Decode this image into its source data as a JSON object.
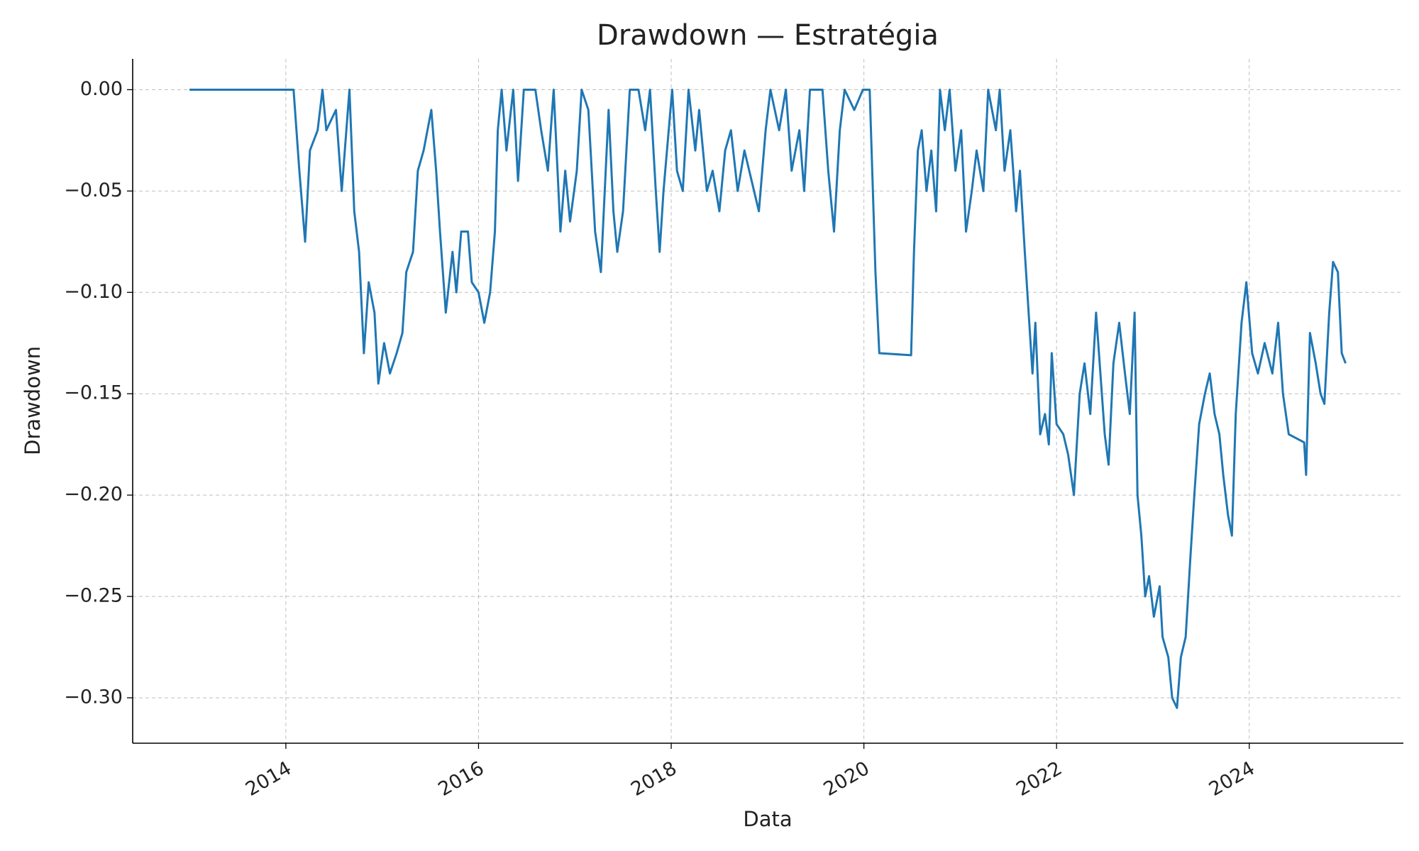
{
  "chart_data": {
    "type": "line",
    "title": "Drawdown — Estratégia",
    "xlabel": "Data",
    "ylabel": "Drawdown",
    "color": "#1f77b4",
    "grid": true,
    "xlim": [
      2012.41,
      2025.6
    ],
    "xticks": [
      2014,
      2016,
      2018,
      2020,
      2022,
      2024
    ],
    "ylim": [
      -0.3224,
      0.0152
    ],
    "yticks": [
      {
        "value": 0,
        "label": "0.00"
      },
      {
        "value": -0.05,
        "label": "−0.05"
      },
      {
        "value": -0.1,
        "label": "−0.10"
      },
      {
        "value": -0.15,
        "label": "−0.15"
      },
      {
        "value": -0.2,
        "label": "−0.20"
      },
      {
        "value": -0.25,
        "label": "−0.25"
      },
      {
        "value": -0.3,
        "label": "−0.30"
      }
    ],
    "x": [
      2013.0,
      2014.08,
      2014.14,
      2014.2,
      2014.25,
      2014.33,
      2014.38,
      2014.42,
      2014.52,
      2014.58,
      2014.66,
      2014.71,
      2014.76,
      2014.81,
      2014.86,
      2014.92,
      2014.96,
      2015.02,
      2015.08,
      2015.15,
      2015.21,
      2015.25,
      2015.32,
      2015.37,
      2015.43,
      2015.51,
      2015.56,
      2015.6,
      2015.66,
      2015.73,
      2015.77,
      2015.82,
      2015.89,
      2015.93,
      2016.0,
      2016.06,
      2016.12,
      2016.17,
      2016.2,
      2016.24,
      2016.29,
      2016.36,
      2016.41,
      2016.47,
      2016.59,
      2016.65,
      2016.72,
      2016.78,
      2016.85,
      2016.9,
      2016.95,
      2017.02,
      2017.07,
      2017.14,
      2017.21,
      2017.27,
      2017.35,
      2017.4,
      2017.44,
      2017.5,
      2017.57,
      2017.66,
      2017.73,
      2017.78,
      2017.84,
      2017.88,
      2017.92,
      2018.01,
      2018.06,
      2018.12,
      2018.18,
      2018.25,
      2018.29,
      2018.37,
      2018.43,
      2018.5,
      2018.56,
      2018.62,
      2018.69,
      2018.76,
      2018.86,
      2018.91,
      2018.98,
      2019.03,
      2019.12,
      2019.19,
      2019.25,
      2019.33,
      2019.38,
      2019.44,
      2019.57,
      2019.63,
      2019.69,
      2019.75,
      2019.8,
      2019.9,
      2019.99,
      2020.06,
      2020.08,
      2020.12,
      2020.16,
      2020.49,
      2020.52,
      2020.56,
      2020.6,
      2020.65,
      2020.7,
      2020.75,
      2020.79,
      2020.84,
      2020.89,
      2020.95,
      2021.01,
      2021.06,
      2021.12,
      2021.17,
      2021.24,
      2021.29,
      2021.37,
      2021.41,
      2021.46,
      2021.52,
      2021.58,
      2021.62,
      2021.67,
      2021.71,
      2021.75,
      2021.78,
      2021.83,
      2021.88,
      2021.92,
      2021.95,
      2022.0,
      2022.07,
      2022.12,
      2022.18,
      2022.24,
      2022.29,
      2022.35,
      2022.41,
      2022.44,
      2022.5,
      2022.54,
      2022.59,
      2022.65,
      2022.71,
      2022.76,
      2022.81,
      2022.84,
      2022.88,
      2022.92,
      2022.96,
      2023.01,
      2023.07,
      2023.1,
      2023.16,
      2023.2,
      2023.25,
      2023.29,
      2023.34,
      2023.39,
      2023.43,
      2023.48,
      2023.54,
      2023.59,
      2023.64,
      2023.69,
      2023.73,
      2023.78,
      2023.82,
      2023.86,
      2023.92,
      2023.97,
      2024.03,
      2024.09,
      2024.16,
      2024.24,
      2024.3,
      2024.35,
      2024.41,
      2024.57,
      2024.59,
      2024.63,
      2024.69,
      2024.74,
      2024.78,
      2024.83,
      2024.87,
      2024.92,
      2024.96,
      2025.0
    ],
    "values": [
      0,
      0,
      -0.04,
      -0.075,
      -0.03,
      -0.02,
      0,
      -0.02,
      -0.01,
      -0.05,
      0,
      -0.06,
      -0.08,
      -0.13,
      -0.095,
      -0.11,
      -0.145,
      -0.125,
      -0.14,
      -0.13,
      -0.12,
      -0.09,
      -0.08,
      -0.04,
      -0.03,
      -0.01,
      -0.04,
      -0.07,
      -0.11,
      -0.08,
      -0.1,
      -0.07,
      -0.07,
      -0.095,
      -0.1,
      -0.115,
      -0.1,
      -0.07,
      -0.02,
      0,
      -0.03,
      0,
      -0.045,
      0,
      0,
      -0.02,
      -0.04,
      0,
      -0.07,
      -0.04,
      -0.065,
      -0.04,
      0,
      -0.01,
      -0.07,
      -0.09,
      -0.01,
      -0.06,
      -0.08,
      -0.06,
      0,
      0,
      -0.02,
      0,
      -0.05,
      -0.08,
      -0.05,
      0,
      -0.04,
      -0.05,
      0,
      -0.03,
      -0.01,
      -0.05,
      -0.04,
      -0.06,
      -0.03,
      -0.02,
      -0.05,
      -0.03,
      -0.05,
      -0.06,
      -0.02,
      0,
      -0.02,
      0,
      -0.04,
      -0.02,
      -0.05,
      0,
      0,
      -0.04,
      -0.07,
      -0.02,
      0,
      -0.01,
      0,
      0,
      -0.03,
      -0.09,
      -0.13,
      -0.131,
      -0.08,
      -0.03,
      -0.02,
      -0.05,
      -0.03,
      -0.06,
      0,
      -0.02,
      0,
      -0.04,
      -0.02,
      -0.07,
      -0.05,
      -0.03,
      -0.05,
      0,
      -0.02,
      0,
      -0.04,
      -0.02,
      -0.06,
      -0.04,
      -0.08,
      -0.11,
      -0.14,
      -0.115,
      -0.17,
      -0.16,
      -0.175,
      -0.13,
      -0.165,
      -0.17,
      -0.18,
      -0.2,
      -0.15,
      -0.135,
      -0.16,
      -0.11,
      -0.13,
      -0.17,
      -0.185,
      -0.135,
      -0.115,
      -0.14,
      -0.16,
      -0.11,
      -0.2,
      -0.22,
      -0.25,
      -0.24,
      -0.26,
      -0.245,
      -0.27,
      -0.28,
      -0.3,
      -0.305,
      -0.28,
      -0.27,
      -0.23,
      -0.2,
      -0.165,
      -0.15,
      -0.14,
      -0.16,
      -0.17,
      -0.19,
      -0.21,
      -0.22,
      -0.16,
      -0.115,
      -0.095,
      -0.13,
      -0.14,
      -0.125,
      -0.14,
      -0.115,
      -0.15,
      -0.17,
      -0.174,
      -0.19,
      -0.12,
      -0.135,
      -0.15,
      -0.155,
      -0.11,
      -0.085,
      -0.09,
      -0.13,
      -0.135
    ]
  }
}
